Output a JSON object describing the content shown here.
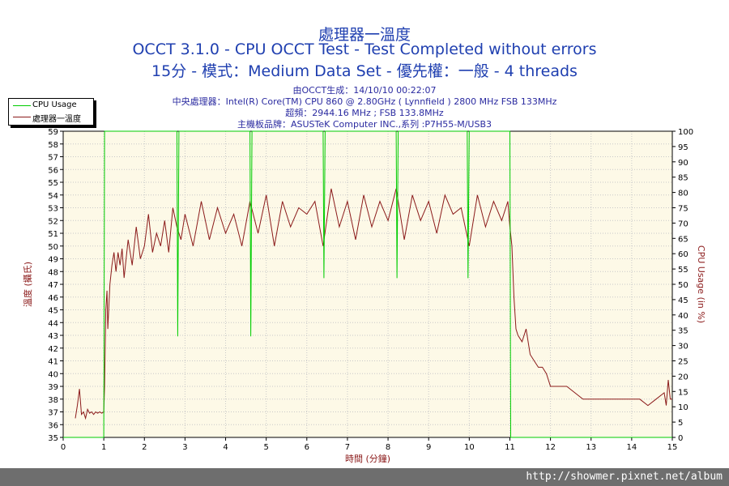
{
  "header": {
    "title": "處理器一溫度",
    "subtitle1": "OCCT 3.1.0 - CPU OCCT Test - Test Completed without errors",
    "subtitle2": "15分 - 模式：Medium Data Set - 優先權：一般 - 4 threads",
    "info1": "由OCCT生成：14/10/10 00:22:07",
    "info2": "中央處理器：Intel(R) Core(TM) CPU 860 @ 2.80GHz ( Lynnfield ) 2800 MHz FSB 133MHz",
    "info3": "超頻：2944.16 MHz ; FSB 133.8MHz",
    "info4": "主機板品牌：ASUSTeK Computer INC.,系列 :P7H55-M/USB3"
  },
  "legend": {
    "cpu_usage": "CPU Usage",
    "temperature": "處理器一溫度"
  },
  "watermark": "http://showmer.pixnet.net/album",
  "colors": {
    "temperature": "#8b1a1a",
    "cpu_usage": "#00cc00",
    "plot_bg": "#fdf9e7",
    "grid": "#c8c8c8",
    "axis_text": "#000000",
    "title": "#1f3fb0"
  },
  "chart_data": {
    "type": "line",
    "xlabel": "時間 (分鐘)",
    "ylabel_left": "溫度 (攝氏)",
    "ylabel_right": "CPU Usage (in %)",
    "xlim": [
      0,
      15
    ],
    "ylim_left": [
      35,
      59
    ],
    "ylim_right": [
      0,
      100
    ],
    "x_ticks": [
      0,
      1,
      2,
      3,
      4,
      5,
      6,
      7,
      8,
      9,
      10,
      11,
      12,
      13,
      14,
      15
    ],
    "y_ticks_left": [
      35,
      36,
      37,
      38,
      39,
      40,
      41,
      42,
      43,
      44,
      45,
      46,
      47,
      48,
      49,
      50,
      51,
      52,
      53,
      54,
      55,
      56,
      57,
      58,
      59
    ],
    "y_ticks_right": [
      0,
      5,
      10,
      15,
      20,
      25,
      30,
      35,
      40,
      45,
      50,
      55,
      60,
      65,
      70,
      75,
      80,
      85,
      90,
      95,
      100
    ],
    "grid": true,
    "legend_position": "top-left",
    "series": [
      {
        "name": "處理器一溫度",
        "axis": "left",
        "x": [
          0.3,
          0.35,
          0.4,
          0.45,
          0.5,
          0.55,
          0.6,
          0.65,
          0.7,
          0.75,
          0.8,
          0.85,
          0.9,
          0.95,
          1.0,
          1.02,
          1.05,
          1.08,
          1.1,
          1.15,
          1.2,
          1.25,
          1.3,
          1.35,
          1.4,
          1.45,
          1.5,
          1.55,
          1.6,
          1.7,
          1.8,
          1.9,
          2.0,
          2.1,
          2.2,
          2.3,
          2.4,
          2.5,
          2.6,
          2.7,
          2.8,
          2.9,
          3.0,
          3.2,
          3.4,
          3.6,
          3.8,
          4.0,
          4.2,
          4.4,
          4.6,
          4.8,
          5.0,
          5.2,
          5.4,
          5.6,
          5.8,
          6.0,
          6.2,
          6.4,
          6.6,
          6.8,
          7.0,
          7.2,
          7.4,
          7.6,
          7.8,
          8.0,
          8.2,
          8.4,
          8.6,
          8.8,
          9.0,
          9.2,
          9.4,
          9.6,
          9.8,
          10.0,
          10.2,
          10.4,
          10.6,
          10.8,
          10.95,
          11.0,
          11.05,
          11.1,
          11.15,
          11.2,
          11.3,
          11.4,
          11.5,
          11.6,
          11.7,
          11.8,
          11.9,
          12.0,
          12.1,
          12.2,
          12.4,
          12.6,
          12.8,
          13.0,
          13.2,
          13.4,
          13.6,
          13.8,
          14.0,
          14.2,
          14.4,
          14.6,
          14.8,
          14.85,
          14.9,
          14.95,
          15.0
        ],
        "y": [
          36.5,
          37.5,
          38.8,
          36.8,
          37.0,
          36.5,
          37.2,
          36.9,
          37.0,
          36.8,
          37.0,
          36.9,
          37.0,
          36.9,
          37.0,
          39.0,
          45.0,
          46.5,
          43.5,
          47.0,
          48.5,
          49.5,
          48.0,
          49.5,
          48.5,
          49.8,
          47.5,
          49.0,
          50.5,
          48.5,
          51.5,
          49.0,
          50.0,
          52.5,
          49.5,
          51.0,
          50.0,
          52.0,
          49.5,
          53.0,
          51.5,
          50.5,
          52.5,
          50.0,
          53.5,
          50.5,
          53.0,
          51.0,
          52.5,
          50.0,
          53.5,
          51.0,
          54.0,
          50.0,
          53.5,
          51.5,
          53.0,
          52.5,
          53.5,
          50.0,
          54.5,
          51.5,
          53.5,
          50.5,
          54.0,
          51.5,
          53.5,
          52.0,
          54.5,
          50.5,
          54.0,
          52.0,
          53.5,
          51.0,
          54.0,
          52.5,
          53.0,
          50.0,
          54.0,
          51.5,
          53.5,
          52.0,
          53.5,
          51.5,
          50.0,
          46.0,
          43.5,
          43.0,
          42.5,
          43.5,
          41.5,
          41.0,
          40.5,
          40.5,
          40.0,
          39.0,
          39.0,
          39.0,
          39.0,
          38.5,
          38.0,
          38.0,
          38.0,
          38.0,
          38.0,
          38.0,
          38.0,
          38.0,
          37.5,
          38.0,
          38.5,
          37.5,
          39.5,
          38.0,
          38.0
        ]
      },
      {
        "name": "CPU Usage",
        "axis": "right",
        "x": [
          0,
          1.0,
          1.02,
          1.05,
          1.1,
          2.8,
          2.82,
          2.85,
          2.88,
          4.6,
          4.62,
          4.65,
          4.68,
          6.4,
          6.42,
          6.45,
          6.48,
          8.2,
          8.22,
          8.25,
          8.28,
          9.95,
          9.97,
          10.0,
          10.03,
          11.0,
          11.02,
          11.05,
          11.1,
          15.0
        ],
        "y": [
          0,
          0,
          100,
          100,
          100,
          100,
          33,
          100,
          100,
          100,
          33,
          100,
          100,
          100,
          52,
          100,
          100,
          100,
          52,
          100,
          100,
          100,
          52,
          100,
          100,
          100,
          0,
          0,
          0,
          0
        ]
      }
    ]
  }
}
